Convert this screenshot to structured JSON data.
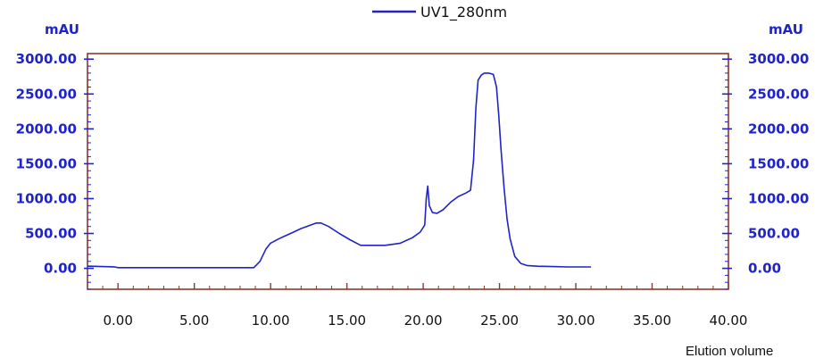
{
  "chart_data": {
    "type": "line",
    "title": "",
    "xlabel": "Elution volume",
    "ylabel_left": "mAU",
    "ylabel_right": "mAU",
    "xlim": [
      -2,
      40
    ],
    "ylim": [
      -300,
      3080
    ],
    "x_ticks": [
      "0.00",
      "5.00",
      "10.00",
      "15.00",
      "20.00",
      "25.00",
      "30.00",
      "35.00",
      "40.00"
    ],
    "x_tick_values": [
      0,
      5,
      10,
      15,
      20,
      25,
      30,
      35,
      40
    ],
    "y_ticks": [
      "0.00",
      "500.00",
      "1000.00",
      "1500.00",
      "2000.00",
      "2500.00",
      "3000.00"
    ],
    "y_tick_values": [
      0,
      500,
      1000,
      1500,
      2000,
      2500,
      3000
    ],
    "legend_position": "top-center",
    "grid": false,
    "colors": {
      "series": "#1f24c8",
      "axis": "#8b3a2a",
      "tick_label": "#1f24c8"
    },
    "series": [
      {
        "name": "UV1_280nm",
        "x": [
          -2,
          -1.8,
          -0.2,
          0,
          3,
          6,
          8.9,
          9.3,
          9.7,
          10.0,
          10.5,
          11.0,
          11.5,
          12.0,
          12.5,
          13.0,
          13.3,
          13.8,
          14.5,
          15.2,
          15.9,
          16.5,
          17.5,
          18.5,
          19.3,
          19.8,
          20.1,
          20.2,
          20.3,
          20.4,
          20.6,
          20.9,
          21.3,
          21.8,
          22.3,
          22.8,
          23.1,
          23.3,
          23.45,
          23.6,
          23.8,
          24.0,
          24.3,
          24.6,
          24.8,
          24.95,
          25.1,
          25.3,
          25.5,
          25.7,
          26.0,
          26.4,
          26.8,
          27.5,
          28.5,
          29.5,
          30.5,
          31.0
        ],
        "y": [
          30,
          30,
          20,
          10,
          10,
          10,
          10,
          100,
          280,
          360,
          420,
          470,
          520,
          570,
          610,
          650,
          650,
          600,
          500,
          410,
          330,
          330,
          330,
          360,
          440,
          520,
          620,
          1000,
          1180,
          900,
          800,
          790,
          840,
          950,
          1030,
          1080,
          1120,
          1550,
          2300,
          2700,
          2770,
          2800,
          2800,
          2780,
          2600,
          2200,
          1700,
          1150,
          700,
          420,
          170,
          70,
          40,
          30,
          25,
          20,
          20,
          20
        ]
      }
    ]
  }
}
